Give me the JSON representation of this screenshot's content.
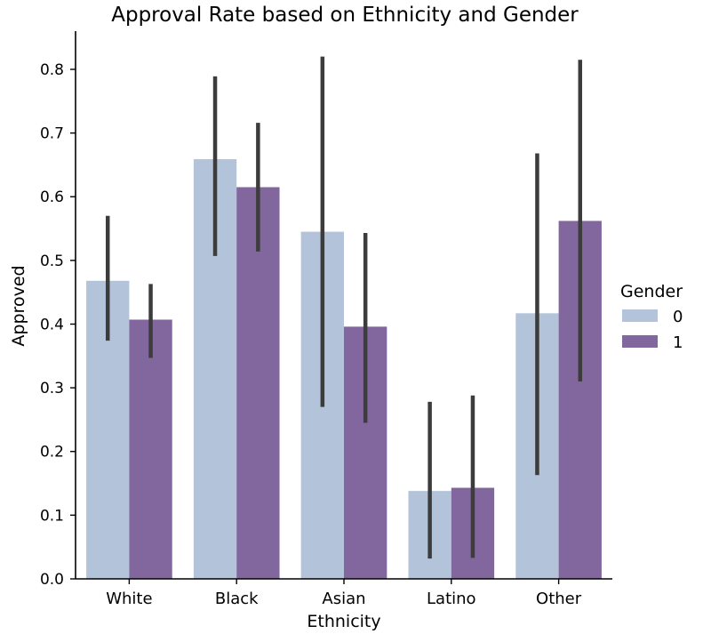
{
  "chart_data": {
    "type": "bar",
    "title": "Approval Rate based on Ethnicity and Gender",
    "xlabel": "Ethnicity",
    "ylabel": "Approved",
    "categories": [
      "White",
      "Black",
      "Asian",
      "Latino",
      "Other"
    ],
    "ylim": [
      0.0,
      0.86
    ],
    "yticks": [
      "0.0",
      "0.1",
      "0.2",
      "0.3",
      "0.4",
      "0.5",
      "0.6",
      "0.7",
      "0.8"
    ],
    "grid": false,
    "legend": {
      "title": "Gender",
      "placement": "right"
    },
    "series": [
      {
        "name": "0",
        "color": "#b3c3d9",
        "values": [
          0.468,
          0.659,
          0.545,
          0.138,
          0.417
        ],
        "ci_low": [
          0.374,
          0.507,
          0.27,
          0.032,
          0.163
        ],
        "ci_high": [
          0.57,
          0.789,
          0.82,
          0.278,
          0.668
        ]
      },
      {
        "name": "1",
        "color": "#82679e",
        "values": [
          0.407,
          0.615,
          0.396,
          0.143,
          0.562
        ],
        "ci_low": [
          0.347,
          0.514,
          0.245,
          0.033,
          0.31
        ],
        "ci_high": [
          0.463,
          0.716,
          0.543,
          0.288,
          0.815
        ]
      }
    ],
    "errorbar_color": "#3c3c3c"
  }
}
